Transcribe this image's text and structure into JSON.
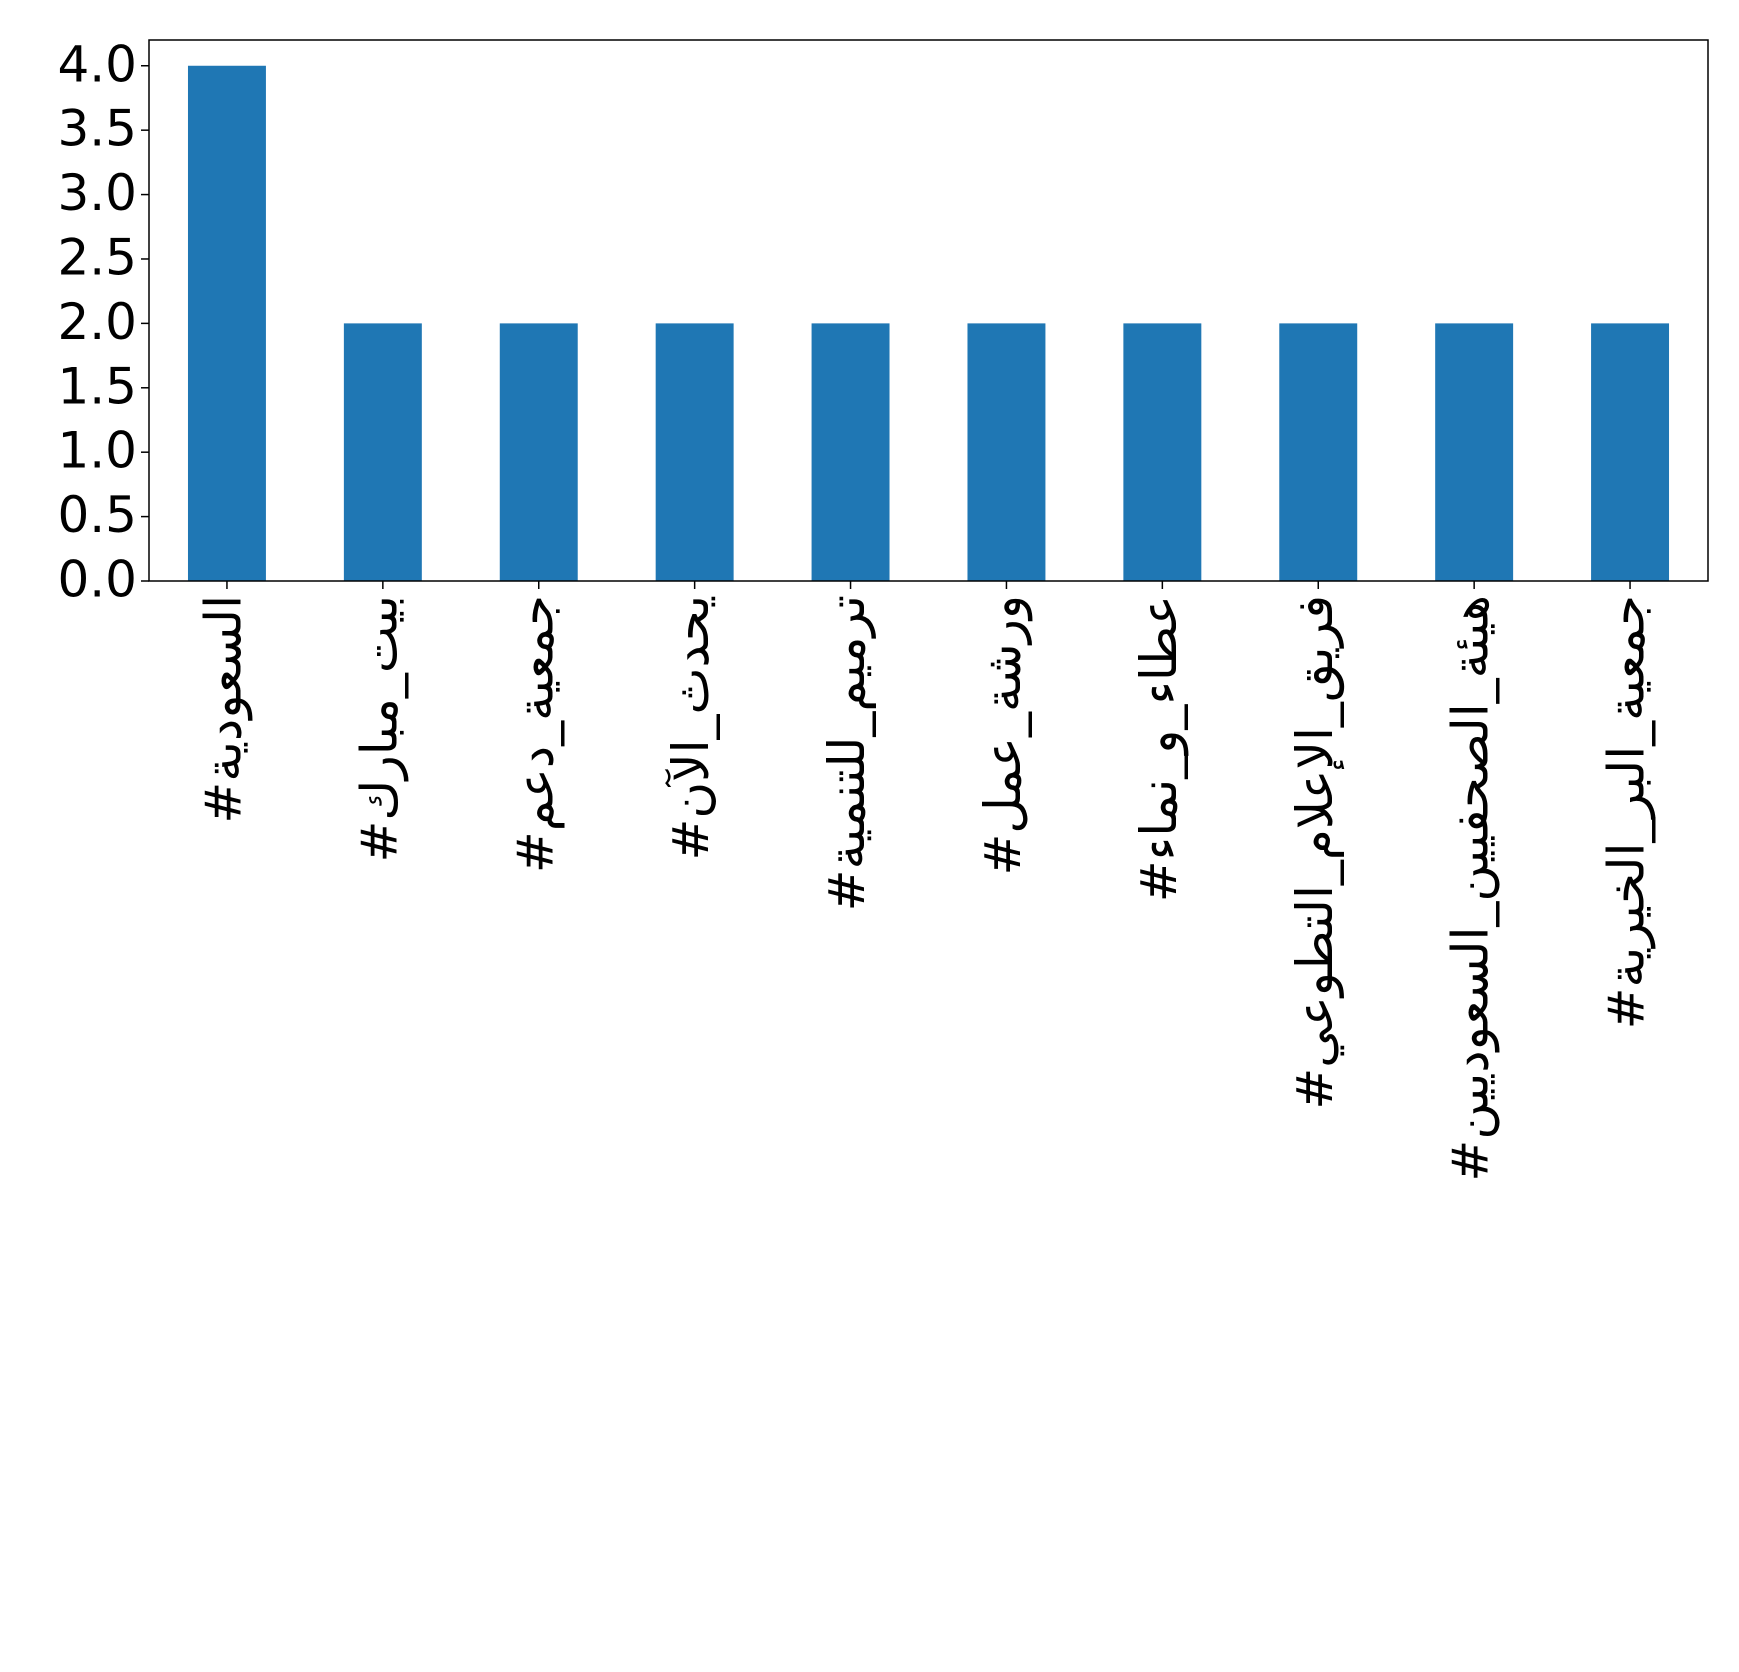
{
  "chart_data": {
    "type": "bar",
    "categories": [
      "#السعودية",
      "#بيت_مبارك",
      "#جمعية_دعم",
      "#يحدث_الآن",
      "#ترميم_للتنمية",
      "#ورشة_عمل",
      "#عطاء_و_نماء",
      "#فريق_الإعلام_التطوعي",
      "#هيئة_الصحفيين_السعوديين",
      "#جمعية_البر_الخيرية"
    ],
    "values": [
      4,
      2,
      2,
      2,
      2,
      2,
      2,
      2,
      2,
      2
    ],
    "color": "#1f77b4",
    "ylim": [
      0,
      4.2
    ],
    "yticks": [
      {
        "value": 0,
        "label": "0.0"
      },
      {
        "value": 0.5,
        "label": "0.5"
      },
      {
        "value": 1,
        "label": "1.0"
      },
      {
        "value": 1.5,
        "label": "1.5"
      },
      {
        "value": 2,
        "label": "2.0"
      },
      {
        "value": 2.5,
        "label": "2.5"
      },
      {
        "value": 3,
        "label": "3.0"
      },
      {
        "value": 3.5,
        "label": "3.5"
      },
      {
        "value": 4,
        "label": "4.0"
      }
    ],
    "grid": false
  }
}
